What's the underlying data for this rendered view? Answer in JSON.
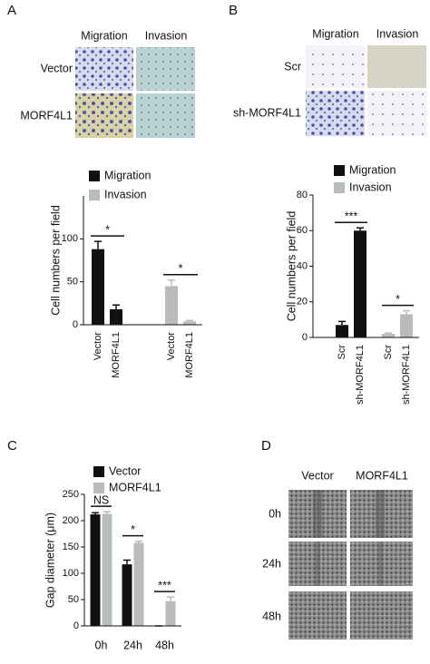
{
  "panel_labels": [
    "A",
    "B",
    "C",
    "D"
  ],
  "images": [
    {
      "columns": [
        "Migration",
        "Invasion"
      ],
      "rows": [
        "Vector",
        "MORF4L1"
      ]
    },
    {
      "columns": [
        "Migration",
        "Invasion"
      ],
      "rows": [
        "Scr",
        "sh-MORF4L1"
      ]
    },
    {
      "columns": [
        "Vector",
        "MORF4L1"
      ],
      "rows": [
        "0h",
        "24h",
        "48h"
      ]
    }
  ],
  "chart_data": [
    {
      "type": "bar",
      "ylabel": "Cell numbers per field",
      "categories": [
        "Vector",
        "MORF4L1",
        "Vector",
        "MORF4L1"
      ],
      "series": [
        {
          "name": "Migration",
          "color": "#111111",
          "values": [
            88,
            18,
            null,
            null
          ],
          "errors": [
            9,
            5,
            null,
            null
          ]
        },
        {
          "name": "Invasion",
          "color": "#b8bcbc",
          "values": [
            null,
            null,
            45,
            4
          ],
          "errors": [
            null,
            null,
            7,
            1
          ]
        }
      ],
      "ylim": [
        0,
        150
      ],
      "yticks": [
        0,
        50,
        100
      ],
      "annotations": [
        "*",
        "*"
      ]
    },
    {
      "type": "bar",
      "ylabel": "Cell numbers per field",
      "categories": [
        "Scr",
        "sh-MORF4L1",
        "Scr",
        "sh-MORF4L1"
      ],
      "series": [
        {
          "name": "Migration",
          "color": "#111111",
          "values": [
            7,
            60,
            null,
            null
          ],
          "errors": [
            2,
            1.5,
            null,
            null
          ]
        },
        {
          "name": "Invasion",
          "color": "#b8bcbc",
          "values": [
            null,
            null,
            2,
            13
          ],
          "errors": [
            null,
            null,
            0.5,
            2
          ]
        }
      ],
      "ylim": [
        0,
        80
      ],
      "yticks": [
        0,
        20,
        40,
        60,
        80
      ],
      "annotations": [
        "***",
        "*"
      ]
    },
    {
      "type": "bar",
      "ylabel": "Gap diameter (μm)",
      "categories": [
        "0h",
        "24h",
        "48h"
      ],
      "series": [
        {
          "name": "Vector",
          "color": "#111111",
          "values": [
            212,
            117,
            0
          ],
          "errors": [
            3,
            8,
            0
          ]
        },
        {
          "name": "MORF4L1",
          "color": "#b8bcbc",
          "values": [
            213,
            158,
            47
          ],
          "errors": [
            4,
            3,
            8
          ]
        }
      ],
      "ylim": [
        0,
        250
      ],
      "yticks": [
        0,
        50,
        100,
        150,
        200,
        250
      ],
      "annotations": [
        "NS",
        "*",
        "***"
      ]
    }
  ]
}
